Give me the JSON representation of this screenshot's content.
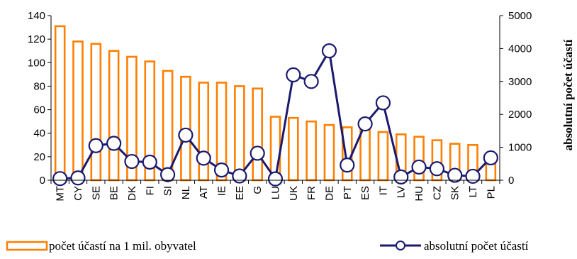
{
  "chart_data": {
    "type": "bar+line",
    "categories": [
      "MT",
      "CY",
      "SE",
      "BE",
      "DK",
      "FI",
      "SI",
      "NL",
      "AT",
      "IE",
      "EE",
      "G",
      "LU",
      "UK",
      "FR",
      "DE",
      "PT",
      "ES",
      "IT",
      "LV",
      "HU",
      "CZ",
      "SK",
      "LT",
      "PL"
    ],
    "series": [
      {
        "name": "počet účastí na 1 mil. obyvatel",
        "type": "bar",
        "axis": "left",
        "color": "#FF7F00",
        "values": [
          131,
          118,
          116,
          110,
          105,
          101,
          93,
          88,
          83,
          83,
          80,
          78,
          54,
          53,
          50,
          47,
          45,
          43,
          41,
          39,
          37,
          34,
          31,
          30,
          18
        ]
      },
      {
        "name": "absolutní počet účastí",
        "type": "line",
        "axis": "right",
        "color": "#1A1A6E",
        "values": [
          50,
          70,
          1050,
          1120,
          570,
          550,
          170,
          1370,
          670,
          310,
          130,
          820,
          40,
          3200,
          3000,
          3930,
          460,
          1710,
          2350,
          100,
          400,
          350,
          150,
          120,
          680
        ]
      }
    ],
    "left_axis": {
      "ylim": [
        0,
        140
      ],
      "ticks": [
        "0",
        "20",
        "40",
        "60",
        "80",
        "100",
        "120",
        "140"
      ]
    },
    "right_axis": {
      "ylim": [
        0,
        5000
      ],
      "ticks": [
        "0",
        "1000",
        "2000",
        "3000",
        "4000",
        "5000"
      ],
      "label": "absolutní počet účastí"
    },
    "legend": [
      {
        "label": "počet účastí na 1 mil. obyvatel",
        "kind": "bar",
        "placement": "bottom-left"
      },
      {
        "label": "absolutní počet účastí",
        "kind": "line",
        "placement": "bottom-right"
      }
    ]
  }
}
